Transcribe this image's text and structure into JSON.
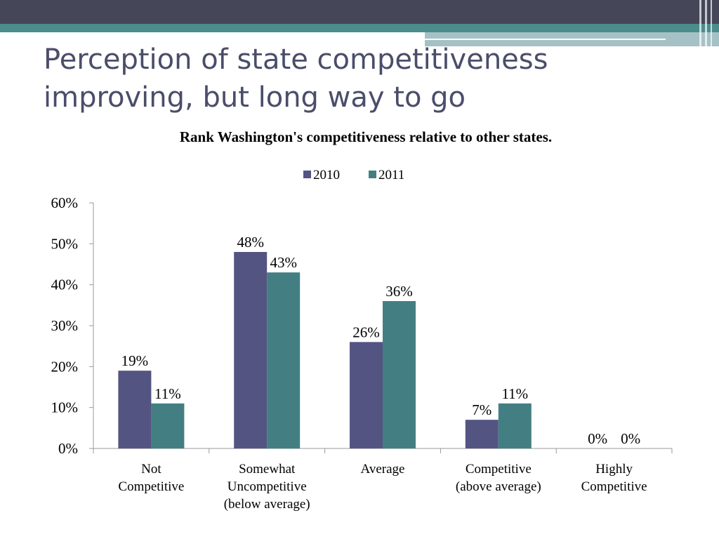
{
  "slide": {
    "title_lines": [
      "Perception of state competitiveness",
      "improving, but long way to go"
    ]
  },
  "theme": {
    "header_dark": "#454759",
    "header_teal": "#4b8c8c",
    "header_light": "#a6c1c6",
    "color_2010": "#545483",
    "color_2011": "#437f82"
  },
  "chart_data": {
    "type": "bar",
    "title": "Rank Washington's competitiveness relative to other states.",
    "categories": [
      [
        "Not",
        "Competitive"
      ],
      [
        "Somewhat",
        "Uncompetitive",
        "(below average)"
      ],
      [
        "Average"
      ],
      [
        "Competitive",
        "(above average)"
      ],
      [
        "Highly",
        "Competitive"
      ]
    ],
    "series": [
      {
        "name": "2010",
        "values": [
          19,
          48,
          26,
          7,
          0
        ],
        "labels": [
          "19%",
          "48%",
          "26%",
          "7%",
          "0%"
        ]
      },
      {
        "name": "2011",
        "values": [
          11,
          43,
          36,
          11,
          0
        ],
        "labels": [
          "11%",
          "43%",
          "36%",
          "11%",
          "0%"
        ]
      }
    ],
    "ylim": [
      0,
      60
    ],
    "yticks": [
      0,
      10,
      20,
      30,
      40,
      50,
      60
    ],
    "ytick_labels": [
      "0%",
      "10%",
      "20%",
      "30%",
      "40%",
      "50%",
      "60%"
    ],
    "legend_position": "top-center",
    "grid": false
  }
}
